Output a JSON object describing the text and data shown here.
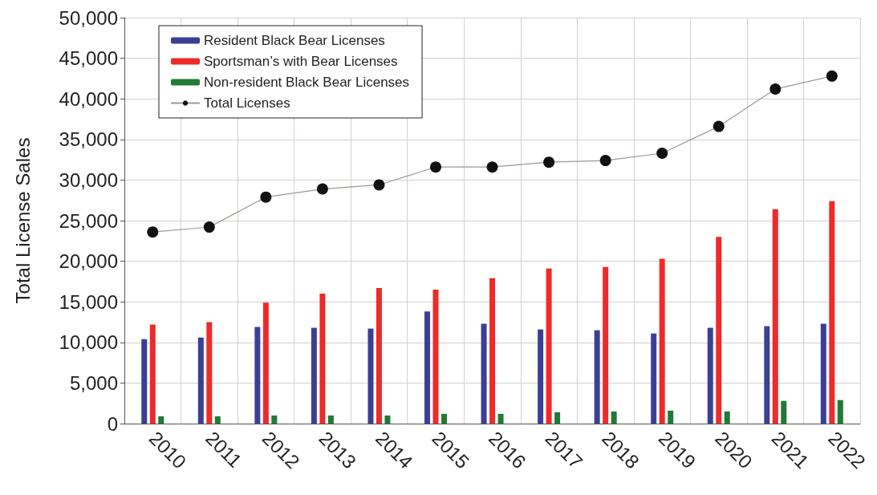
{
  "chart_data": {
    "type": "bar",
    "ylabel": "Total License Sales",
    "categories": [
      "2010",
      "2011",
      "2012",
      "2013",
      "2014",
      "2015",
      "2016",
      "2017",
      "2018",
      "2019",
      "2020",
      "2021",
      "2022"
    ],
    "series": [
      {
        "name": "Resident Black Bear Licenses",
        "color": "#3b3f94",
        "values": [
          10400,
          10600,
          11900,
          11800,
          11700,
          13800,
          12300,
          11600,
          11500,
          11100,
          11800,
          12000,
          12300
        ]
      },
      {
        "name": "Sportsman’s with Bear Licenses",
        "color": "#ee2a2a",
        "values": [
          12200,
          12500,
          14900,
          16000,
          16700,
          16500,
          17900,
          19100,
          19300,
          20300,
          23000,
          26400,
          27400
        ]
      },
      {
        "name": "Non-resident Black Bear Licenses",
        "color": "#217a35",
        "values": [
          900,
          900,
          1000,
          1000,
          1000,
          1200,
          1200,
          1400,
          1500,
          1600,
          1500,
          2800,
          2900
        ]
      },
      {
        "name": "Total Licenses",
        "type": "line",
        "color": "#111111",
        "values": [
          23600,
          24200,
          27900,
          28900,
          29400,
          31600,
          31600,
          32200,
          32400,
          33300,
          36600,
          41200,
          42800
        ]
      }
    ],
    "ylim": [
      0,
      50000
    ],
    "yticks": [
      0,
      {
        "value": 5000,
        "label": "5,000"
      },
      {
        "value": 10000,
        "label": "10,000"
      },
      {
        "value": 15000,
        "label": "15,000"
      },
      {
        "value": 20000,
        "label": "20,000"
      },
      {
        "value": 25000,
        "label": "25,000"
      },
      {
        "value": 30000,
        "label": "30,000"
      },
      {
        "value": 35000,
        "label": "35,000"
      },
      {
        "value": 40000,
        "label": "40,000"
      },
      {
        "value": 45000,
        "label": "45,000"
      },
      {
        "value": 50000,
        "label": "50,000"
      }
    ],
    "grid": true,
    "legend": "top left",
    "marker": "circle"
  }
}
